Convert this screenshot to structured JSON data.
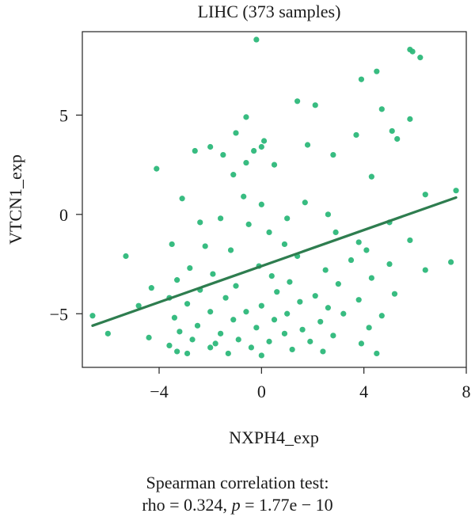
{
  "chart_data": {
    "type": "scatter",
    "title": "LIHC (373 samples)",
    "xlabel": "NXPH4_exp",
    "ylabel": "VTCN1_exp",
    "xlim": [
      -7,
      8
    ],
    "ylim": [
      -7.7,
      9.2
    ],
    "x_ticks": [
      -4,
      0,
      4,
      8
    ],
    "y_ticks": [
      -5,
      0,
      5
    ],
    "x_tick_labels": [
      "−4",
      "0",
      "4",
      "8"
    ],
    "y_tick_labels": [
      "−5",
      "0",
      "5"
    ],
    "grid": false,
    "point_color": "#2db87a",
    "line_color": "#2e7d4f",
    "regression_line": {
      "x": [
        -6.6,
        7.6
      ],
      "y": [
        -5.6,
        0.85
      ]
    },
    "points": [
      [
        -0.2,
        8.8
      ],
      [
        5.8,
        8.3
      ],
      [
        5.9,
        8.2
      ],
      [
        6.2,
        7.9
      ],
      [
        4.5,
        7.2
      ],
      [
        3.9,
        6.8
      ],
      [
        1.4,
        5.7
      ],
      [
        2.1,
        5.5
      ],
      [
        4.7,
        5.3
      ],
      [
        -0.6,
        4.9
      ],
      [
        5.8,
        4.8
      ],
      [
        -1.0,
        4.1
      ],
      [
        5.1,
        4.2
      ],
      [
        3.7,
        4.0
      ],
      [
        0.1,
        3.7
      ],
      [
        0.0,
        3.4
      ],
      [
        1.8,
        3.5
      ],
      [
        -2.0,
        3.4
      ],
      [
        -2.6,
        3.2
      ],
      [
        -1.5,
        3.0
      ],
      [
        5.3,
        3.8
      ],
      [
        2.8,
        3.0
      ],
      [
        -0.3,
        3.2
      ],
      [
        -4.1,
        2.3
      ],
      [
        -0.6,
        2.6
      ],
      [
        0.5,
        2.5
      ],
      [
        -1.1,
        2.0
      ],
      [
        4.3,
        1.9
      ],
      [
        6.4,
        1.0
      ],
      [
        7.6,
        1.2
      ],
      [
        -3.1,
        0.8
      ],
      [
        -0.7,
        0.9
      ],
      [
        0.0,
        0.5
      ],
      [
        1.7,
        0.6
      ],
      [
        2.6,
        0.0
      ],
      [
        -2.4,
        -0.4
      ],
      [
        1.0,
        -0.2
      ],
      [
        -1.6,
        -0.2
      ],
      [
        -0.5,
        -0.5
      ],
      [
        0.3,
        -0.9
      ],
      [
        2.9,
        -0.9
      ],
      [
        5.0,
        -0.4
      ],
      [
        3.8,
        -1.4
      ],
      [
        0.9,
        -1.5
      ],
      [
        -2.2,
        -1.6
      ],
      [
        4.1,
        -1.8
      ],
      [
        5.8,
        -1.3
      ],
      [
        -3.5,
        -1.5
      ],
      [
        -1.2,
        -1.8
      ],
      [
        1.4,
        -2.1
      ],
      [
        -5.3,
        -2.1
      ],
      [
        3.5,
        -2.3
      ],
      [
        5.0,
        -2.5
      ],
      [
        7.4,
        -2.4
      ],
      [
        -0.1,
        -2.6
      ],
      [
        -2.8,
        -2.7
      ],
      [
        2.5,
        -2.8
      ],
      [
        6.4,
        -2.8
      ],
      [
        -1.9,
        -3.0
      ],
      [
        0.4,
        -3.1
      ],
      [
        4.3,
        -3.2
      ],
      [
        -3.3,
        -3.3
      ],
      [
        1.1,
        -3.4
      ],
      [
        3.0,
        -3.5
      ],
      [
        -1.0,
        -3.6
      ],
      [
        -4.3,
        -3.7
      ],
      [
        -2.4,
        -3.8
      ],
      [
        0.6,
        -3.9
      ],
      [
        2.1,
        -4.1
      ],
      [
        5.2,
        -4.0
      ],
      [
        -3.6,
        -4.2
      ],
      [
        -1.4,
        -4.2
      ],
      [
        1.5,
        -4.4
      ],
      [
        3.8,
        -4.3
      ],
      [
        -2.9,
        -4.5
      ],
      [
        0.0,
        -4.6
      ],
      [
        2.6,
        -4.7
      ],
      [
        -4.8,
        -4.6
      ],
      [
        -2.0,
        -4.9
      ],
      [
        -0.6,
        -4.9
      ],
      [
        1.0,
        -5.0
      ],
      [
        3.2,
        -5.0
      ],
      [
        4.7,
        -5.1
      ],
      [
        -3.4,
        -5.2
      ],
      [
        -1.1,
        -5.3
      ],
      [
        0.5,
        -5.3
      ],
      [
        2.3,
        -5.4
      ],
      [
        -6.6,
        -5.1
      ],
      [
        -2.5,
        -5.6
      ],
      [
        -0.2,
        -5.7
      ],
      [
        1.6,
        -5.8
      ],
      [
        4.2,
        -5.7
      ],
      [
        -3.2,
        -5.9
      ],
      [
        -1.6,
        -6.0
      ],
      [
        0.9,
        -6.0
      ],
      [
        2.8,
        -6.1
      ],
      [
        -6.0,
        -6.0
      ],
      [
        -4.4,
        -6.2
      ],
      [
        -2.7,
        -6.3
      ],
      [
        -0.9,
        -6.3
      ],
      [
        0.3,
        -6.4
      ],
      [
        1.9,
        -6.4
      ],
      [
        3.9,
        -6.5
      ],
      [
        -3.6,
        -6.6
      ],
      [
        -2.0,
        -6.7
      ],
      [
        -0.4,
        -6.7
      ],
      [
        1.2,
        -6.8
      ],
      [
        -2.9,
        -7.0
      ],
      [
        -1.3,
        -7.0
      ],
      [
        0.0,
        -7.1
      ],
      [
        4.5,
        -7.0
      ],
      [
        -3.3,
        -6.9
      ],
      [
        2.4,
        -6.9
      ],
      [
        -1.8,
        -6.5
      ]
    ]
  },
  "stats": {
    "line1": "Spearman correlation test:",
    "line2_prefix": "rho = 0.324, ",
    "line2_p": "p",
    "line2_suffix": " = 1.77e − 10"
  }
}
